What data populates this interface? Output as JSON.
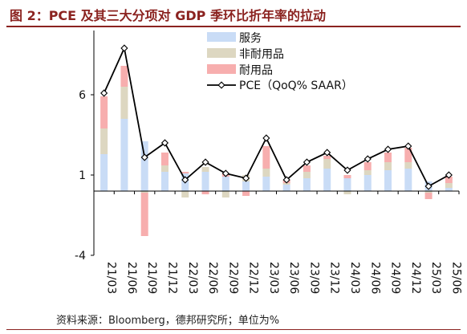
{
  "title": "图 2：PCE 及其三大分项对 GDP 季环比折年率的拉动",
  "source": "资料来源：Bloomberg，德邦研究所；单位为%",
  "colors": {
    "title": "#8b2320",
    "services": "#c9dcf6",
    "nondurable": "#ddd7c1",
    "durable": "#f7aeae",
    "pce_line": "#000000"
  },
  "chart_data": {
    "type": "bar",
    "stacked": true,
    "categories": [
      "21/03",
      "21/06",
      "21/09",
      "21/12",
      "22/03",
      "22/06",
      "22/09",
      "22/12",
      "23/03",
      "23/06",
      "23/09",
      "23/12",
      "24/03",
      "24/06",
      "24/09",
      "24/12",
      "25/03",
      "25/06"
    ],
    "series": [
      {
        "name": "服务",
        "values": [
          2.3,
          4.5,
          3.1,
          1.2,
          1.1,
          1.2,
          0.9,
          0.6,
          0.9,
          0.4,
          0.8,
          1.4,
          0.8,
          1.0,
          1.3,
          1.4,
          0.6,
          0.2
        ]
      },
      {
        "name": "非耐用品",
        "values": [
          1.6,
          2.0,
          -0.1,
          0.4,
          -0.4,
          0.3,
          -0.4,
          0.4,
          0.5,
          0.1,
          0.4,
          0.6,
          -0.2,
          0.3,
          0.5,
          0.4,
          -0.1,
          0.3
        ]
      },
      {
        "name": "耐用品",
        "values": [
          2.0,
          1.3,
          -2.7,
          0.8,
          0.1,
          -0.2,
          0.2,
          -0.3,
          1.4,
          0.2,
          0.4,
          0.2,
          0.2,
          0.5,
          0.6,
          0.9,
          -0.4,
          0.4
        ]
      },
      {
        "name": "PCE（QoQ% SAAR）",
        "type": "line",
        "values": [
          6.1,
          8.9,
          2.1,
          3.0,
          0.7,
          1.8,
          1.1,
          0.8,
          3.3,
          0.7,
          1.8,
          2.4,
          1.3,
          2.0,
          2.6,
          2.8,
          0.3,
          1.0
        ]
      }
    ],
    "ylim": [
      -4,
      9.5
    ],
    "yticks": [
      -4,
      1,
      6
    ],
    "xlabel": "",
    "ylabel": "",
    "legend_position": "top"
  }
}
